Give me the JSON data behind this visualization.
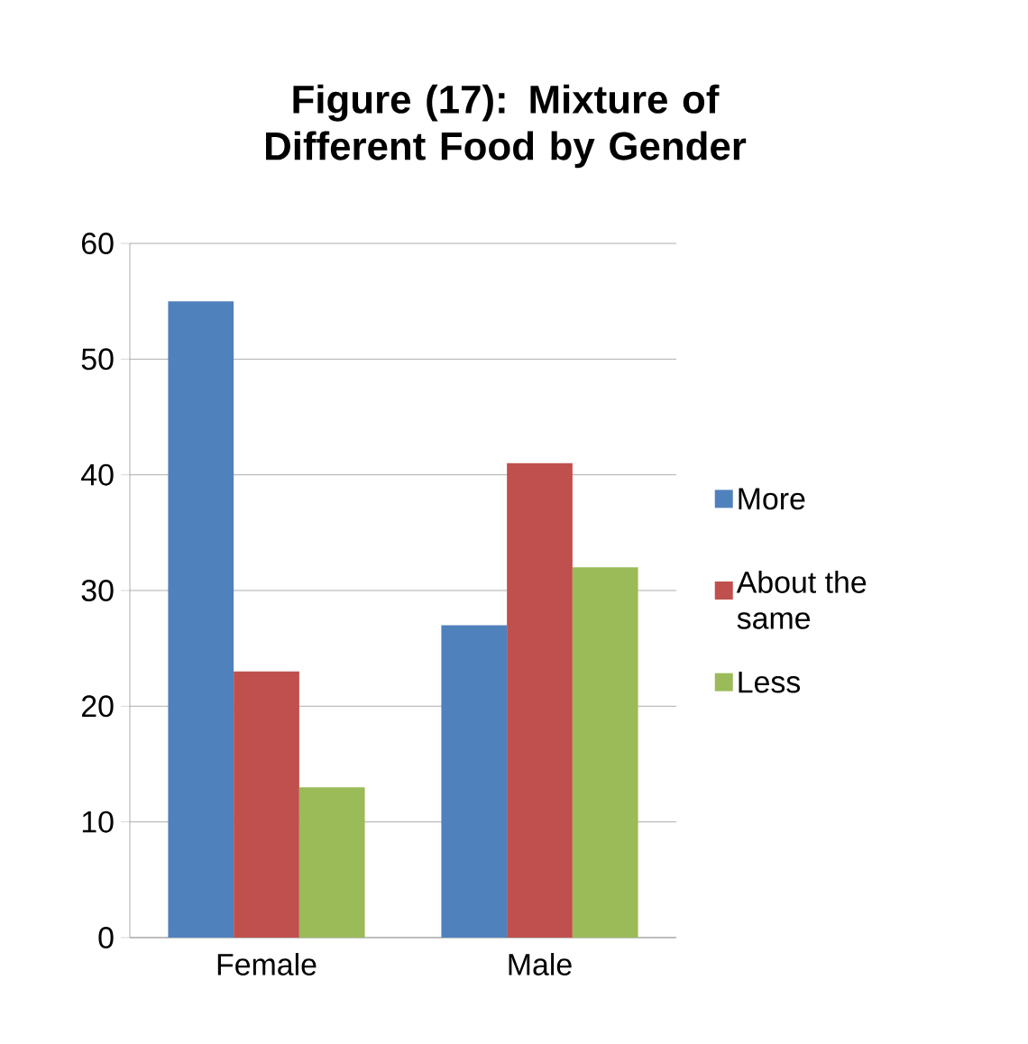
{
  "chart_data": {
    "type": "bar",
    "title": "Figure (17): Mixture of Different Food by Gender",
    "categories": [
      "Female",
      "Male"
    ],
    "series": [
      {
        "name": "More",
        "color": "#4f81bd",
        "values": [
          55,
          27
        ]
      },
      {
        "name": "About the same",
        "color": "#c0504d",
        "values": [
          23,
          41
        ]
      },
      {
        "name": "Less",
        "color": "#9bbb59",
        "values": [
          13,
          32
        ]
      }
    ],
    "ylim": [
      0,
      60
    ],
    "yticks": [
      0,
      10,
      20,
      30,
      40,
      50,
      60
    ],
    "grid": "y",
    "legend": "right"
  }
}
